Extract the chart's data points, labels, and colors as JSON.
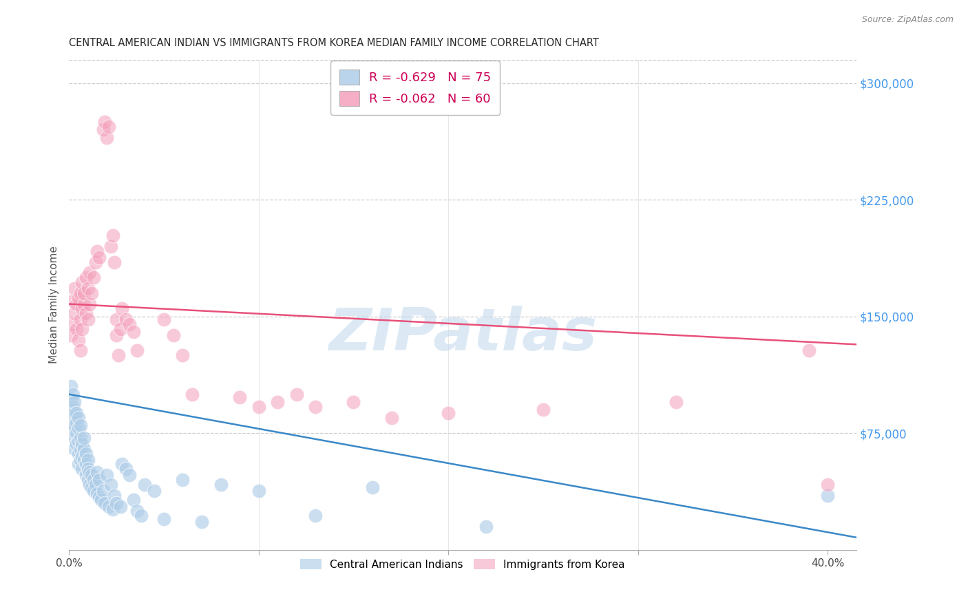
{
  "title": "CENTRAL AMERICAN INDIAN VS IMMIGRANTS FROM KOREA MEDIAN FAMILY INCOME CORRELATION CHART",
  "source": "Source: ZipAtlas.com",
  "ylabel": "Median Family Income",
  "right_ytick_labels": [
    "$300,000",
    "$225,000",
    "$150,000",
    "$75,000"
  ],
  "right_ytick_values": [
    300000,
    225000,
    150000,
    75000
  ],
  "ylim": [
    0,
    315000
  ],
  "xlim": [
    0.0,
    0.415
  ],
  "legend_entries": [
    {
      "label": "R = -0.629   N = 75",
      "color": "#aecde8"
    },
    {
      "label": "R = -0.062   N = 60",
      "color": "#f4a0bb"
    }
  ],
  "legend_labels_bottom": [
    "Central American Indians",
    "Immigrants from Korea"
  ],
  "blue_color": "#aecde8",
  "pink_color": "#f4a0bb",
  "blue_line_color": "#3a88c8",
  "pink_line_color": "#e8507a",
  "watermark": "ZIPatlas",
  "blue_scatter_x": [
    0.001,
    0.001,
    0.002,
    0.002,
    0.002,
    0.002,
    0.002,
    0.003,
    0.003,
    0.003,
    0.003,
    0.003,
    0.004,
    0.004,
    0.004,
    0.004,
    0.005,
    0.005,
    0.005,
    0.005,
    0.005,
    0.006,
    0.006,
    0.006,
    0.006,
    0.007,
    0.007,
    0.007,
    0.008,
    0.008,
    0.008,
    0.009,
    0.009,
    0.009,
    0.01,
    0.01,
    0.01,
    0.011,
    0.011,
    0.012,
    0.012,
    0.013,
    0.013,
    0.014,
    0.015,
    0.015,
    0.016,
    0.016,
    0.017,
    0.018,
    0.019,
    0.02,
    0.021,
    0.022,
    0.023,
    0.024,
    0.025,
    0.027,
    0.028,
    0.03,
    0.032,
    0.034,
    0.036,
    0.038,
    0.04,
    0.045,
    0.05,
    0.06,
    0.07,
    0.08,
    0.1,
    0.13,
    0.16,
    0.22,
    0.4
  ],
  "blue_scatter_y": [
    105000,
    95000,
    100000,
    92000,
    85000,
    78000,
    90000,
    88000,
    80000,
    72000,
    95000,
    65000,
    82000,
    75000,
    68000,
    88000,
    78000,
    70000,
    62000,
    85000,
    55000,
    72000,
    65000,
    58000,
    80000,
    68000,
    60000,
    52000,
    65000,
    58000,
    72000,
    62000,
    55000,
    48000,
    58000,
    52000,
    45000,
    50000,
    42000,
    48000,
    40000,
    45000,
    38000,
    42000,
    36000,
    50000,
    34000,
    45000,
    32000,
    38000,
    30000,
    48000,
    28000,
    42000,
    26000,
    35000,
    30000,
    28000,
    55000,
    52000,
    48000,
    32000,
    25000,
    22000,
    42000,
    38000,
    20000,
    45000,
    18000,
    42000,
    38000,
    22000,
    40000,
    15000,
    35000
  ],
  "pink_scatter_x": [
    0.001,
    0.002,
    0.002,
    0.003,
    0.003,
    0.004,
    0.004,
    0.005,
    0.005,
    0.006,
    0.006,
    0.006,
    0.007,
    0.007,
    0.007,
    0.008,
    0.008,
    0.009,
    0.009,
    0.01,
    0.01,
    0.011,
    0.011,
    0.012,
    0.013,
    0.014,
    0.015,
    0.016,
    0.018,
    0.019,
    0.02,
    0.021,
    0.022,
    0.023,
    0.024,
    0.025,
    0.025,
    0.026,
    0.027,
    0.028,
    0.03,
    0.032,
    0.034,
    0.036,
    0.05,
    0.055,
    0.06,
    0.065,
    0.09,
    0.1,
    0.11,
    0.12,
    0.13,
    0.15,
    0.17,
    0.2,
    0.25,
    0.32,
    0.39,
    0.4
  ],
  "pink_scatter_y": [
    138000,
    145000,
    160000,
    152000,
    168000,
    142000,
    158000,
    135000,
    162000,
    148000,
    165000,
    128000,
    155000,
    142000,
    172000,
    158000,
    165000,
    152000,
    175000,
    148000,
    168000,
    158000,
    178000,
    165000,
    175000,
    185000,
    192000,
    188000,
    270000,
    275000,
    265000,
    272000,
    195000,
    202000,
    185000,
    148000,
    138000,
    125000,
    142000,
    155000,
    148000,
    145000,
    140000,
    128000,
    148000,
    138000,
    125000,
    100000,
    98000,
    92000,
    95000,
    100000,
    92000,
    95000,
    85000,
    88000,
    90000,
    95000,
    128000,
    42000
  ],
  "blue_line_x": [
    0.0,
    0.415
  ],
  "blue_line_y": [
    100000,
    8000
  ],
  "pink_line_x": [
    0.0,
    0.415
  ],
  "pink_line_y": [
    158000,
    132000
  ],
  "background_color": "#ffffff",
  "grid_color": "#cccccc",
  "title_color": "#2a2a2a",
  "title_fontsize": 10.5,
  "axis_label_color": "#555555",
  "right_label_color": "#4499ee",
  "legend_r_color": "#cc0055",
  "legend_n_color": "#2266bb"
}
